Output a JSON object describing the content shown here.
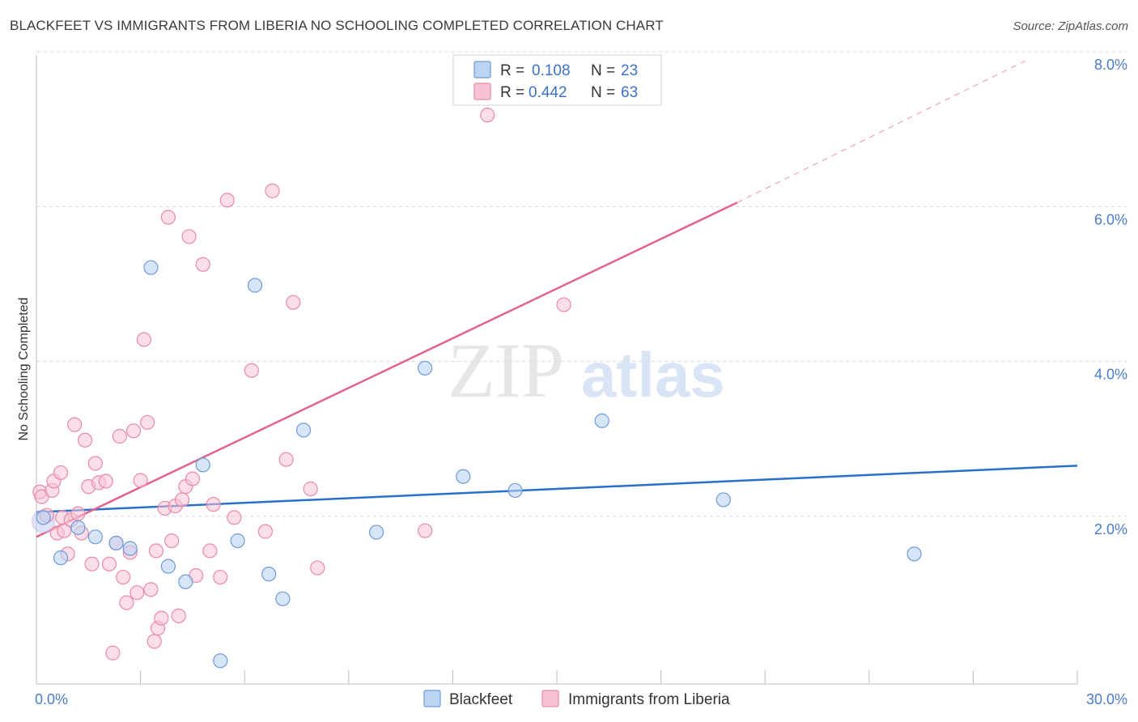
{
  "title": "BLACKFEET VS IMMIGRANTS FROM LIBERIA NO SCHOOLING COMPLETED CORRELATION CHART",
  "source": "Source: ZipAtlas.com",
  "watermark": {
    "zip": "ZIP",
    "atlas": "atlas"
  },
  "colors": {
    "blue_fill": "#bcd4f3",
    "blue_stroke": "#6f9ad8",
    "blue_line": "#2a6fcc",
    "pink_fill": "#f7c3d3",
    "pink_stroke": "#e88aa8",
    "pink_line": "#e0648c",
    "grid": "#d9d9d9",
    "tick_text": "#4a7cc9"
  },
  "legend": {
    "rows": [
      {
        "r_label": "R = ",
        "r_value": "0.108",
        "n_label": "N = ",
        "n_value": "23",
        "series": "blackfeet"
      },
      {
        "r_label": "R = ",
        "r_value": "0.442",
        "n_label": "N = ",
        "n_value": "63",
        "series": "liberia"
      }
    ]
  },
  "chart_data": {
    "type": "scatter",
    "title": "BLACKFEET VS IMMIGRANTS FROM LIBERIA NO SCHOOLING COMPLETED CORRELATION CHART",
    "xlabel": "",
    "ylabel": "No Schooling Completed",
    "xlim": [
      0,
      30
    ],
    "ylim": [
      0,
      8
    ],
    "x_tick_labels": [
      "0.0%",
      "30.0%"
    ],
    "y_ticks": [
      2,
      4,
      6,
      8
    ],
    "y_tick_labels": [
      "2.0%",
      "4.0%",
      "6.0%",
      "8.0%"
    ],
    "grid": true,
    "legend_position": "top-center",
    "series": [
      {
        "name": "Blackfeet",
        "color": "#6f9ad8",
        "trend": {
          "x": [
            0,
            30
          ],
          "y": [
            2.22,
            2.82
          ]
        },
        "points": [
          [
            0.2,
            2.15
          ],
          [
            0.7,
            1.63
          ],
          [
            1.2,
            2.02
          ],
          [
            1.7,
            1.9
          ],
          [
            2.3,
            1.82
          ],
          [
            2.7,
            1.75
          ],
          [
            3.3,
            5.38
          ],
          [
            3.8,
            1.52
          ],
          [
            4.3,
            1.32
          ],
          [
            4.8,
            2.83
          ],
          [
            5.3,
            0.3
          ],
          [
            5.8,
            1.85
          ],
          [
            6.3,
            5.15
          ],
          [
            6.7,
            1.42
          ],
          [
            7.1,
            1.1
          ],
          [
            7.7,
            3.28
          ],
          [
            9.8,
            1.96
          ],
          [
            11.2,
            4.08
          ],
          [
            12.3,
            2.68
          ],
          [
            13.8,
            2.5
          ],
          [
            16.3,
            3.4
          ],
          [
            19.8,
            2.38
          ],
          [
            25.3,
            1.68
          ]
        ]
      },
      {
        "name": "Immigrants from Liberia",
        "color": "#e88aa8",
        "trend": {
          "x": [
            0,
            20.2
          ],
          "y": [
            1.9,
            6.22
          ]
        },
        "trend_dashed": {
          "x": [
            20.2,
            28.5
          ],
          "y": [
            6.22,
            8.05
          ]
        },
        "points": [
          [
            0.1,
            2.48
          ],
          [
            0.15,
            2.42
          ],
          [
            0.3,
            2.18
          ],
          [
            0.45,
            2.5
          ],
          [
            0.5,
            2.62
          ],
          [
            0.6,
            1.95
          ],
          [
            0.7,
            2.73
          ],
          [
            0.75,
            2.15
          ],
          [
            0.8,
            1.98
          ],
          [
            0.9,
            1.68
          ],
          [
            1.0,
            2.12
          ],
          [
            1.1,
            3.35
          ],
          [
            1.2,
            2.2
          ],
          [
            1.3,
            1.95
          ],
          [
            1.4,
            3.15
          ],
          [
            1.5,
            2.55
          ],
          [
            1.6,
            1.55
          ],
          [
            1.7,
            2.85
          ],
          [
            1.8,
            2.6
          ],
          [
            2.0,
            2.62
          ],
          [
            2.1,
            1.55
          ],
          [
            2.2,
            0.4
          ],
          [
            2.3,
            1.82
          ],
          [
            2.4,
            3.2
          ],
          [
            2.5,
            1.38
          ],
          [
            2.6,
            1.05
          ],
          [
            2.7,
            1.7
          ],
          [
            2.8,
            3.27
          ],
          [
            2.9,
            1.18
          ],
          [
            3.0,
            2.63
          ],
          [
            3.1,
            4.45
          ],
          [
            3.2,
            3.38
          ],
          [
            3.3,
            1.22
          ],
          [
            3.4,
            0.55
          ],
          [
            3.45,
            1.72
          ],
          [
            3.5,
            0.72
          ],
          [
            3.6,
            0.85
          ],
          [
            3.7,
            2.27
          ],
          [
            3.8,
            6.03
          ],
          [
            3.9,
            1.85
          ],
          [
            4.0,
            2.3
          ],
          [
            4.1,
            0.88
          ],
          [
            4.2,
            2.38
          ],
          [
            4.3,
            2.55
          ],
          [
            4.4,
            5.78
          ],
          [
            4.5,
            2.65
          ],
          [
            4.6,
            1.4
          ],
          [
            4.8,
            5.42
          ],
          [
            5.0,
            1.72
          ],
          [
            5.1,
            2.32
          ],
          [
            5.3,
            1.38
          ],
          [
            5.5,
            6.25
          ],
          [
            5.7,
            2.15
          ],
          [
            6.2,
            4.05
          ],
          [
            6.6,
            1.97
          ],
          [
            6.8,
            6.37
          ],
          [
            7.2,
            2.9
          ],
          [
            7.4,
            4.93
          ],
          [
            7.9,
            2.52
          ],
          [
            8.1,
            1.5
          ],
          [
            11.2,
            1.98
          ],
          [
            13.0,
            7.35
          ],
          [
            15.2,
            4.9
          ]
        ]
      }
    ]
  },
  "bottom_legend": [
    {
      "label": "Blackfeet",
      "series": "blackfeet"
    },
    {
      "label": "Immigrants from Liberia",
      "series": "liberia"
    }
  ]
}
